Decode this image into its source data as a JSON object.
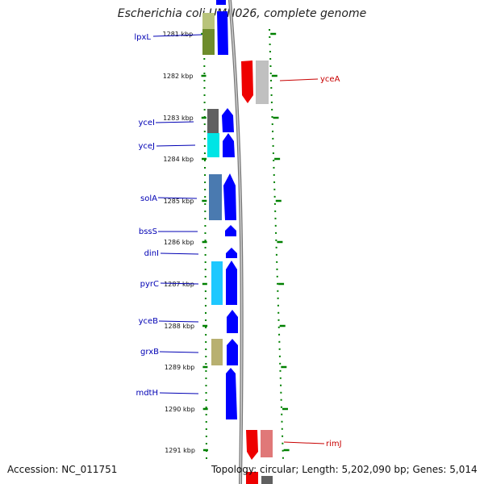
{
  "header": {
    "title": "Escherichia coli UMN026, complete genome"
  },
  "footer": {
    "accession": "Accession: NC_011751",
    "topology": "Topology: circular; Length: 5,202,090 bp; Genes: 5,014"
  },
  "colors": {
    "forward_gene_label": "#0000b4",
    "reverse_gene_label": "#c80000",
    "scale_dots": "#008000",
    "backbone": "#808080"
  },
  "scale_ticks": [
    {
      "label": "1281 kbp"
    },
    {
      "label": "1282 kbp"
    },
    {
      "label": "1283 kbp"
    },
    {
      "label": "1284 kbp"
    },
    {
      "label": "1285 kbp"
    },
    {
      "label": "1286 kbp"
    },
    {
      "label": "1287 kbp"
    },
    {
      "label": "1288 kbp"
    },
    {
      "label": "1289 kbp"
    },
    {
      "label": "1290 kbp"
    },
    {
      "label": "1291 kbp"
    }
  ],
  "forward_genes": [
    {
      "name": "lpxL"
    },
    {
      "name": "yceI"
    },
    {
      "name": "yceJ"
    },
    {
      "name": "solA"
    },
    {
      "name": "bssS"
    },
    {
      "name": "dinI"
    },
    {
      "name": "pyrC"
    },
    {
      "name": "yceB"
    },
    {
      "name": "grxB"
    },
    {
      "name": "mdtH"
    }
  ],
  "reverse_genes": [
    {
      "name": "yceA"
    },
    {
      "name": "rimJ"
    }
  ]
}
